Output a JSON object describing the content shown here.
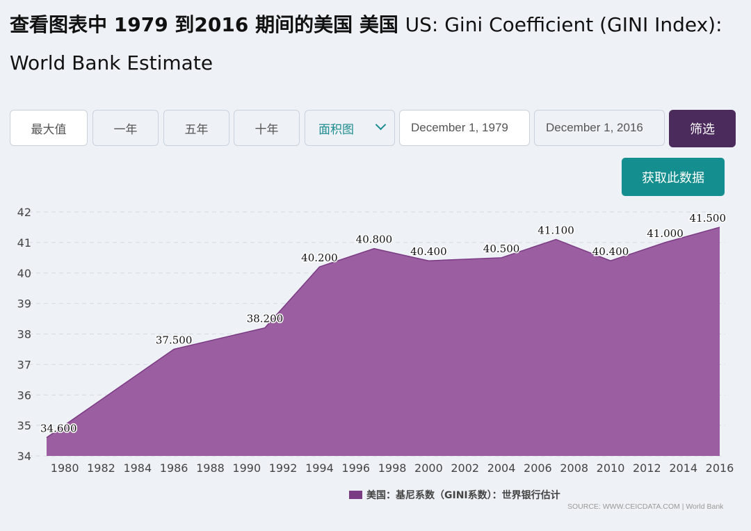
{
  "page": {
    "title_cn": "查看图表中 1979 到2016 期间的美国 美国",
    "title_en": "US: Gini Coefficient (GINI Index): World Bank Estimate"
  },
  "controls": {
    "range_buttons": [
      "最大值",
      "一年",
      "五年",
      "十年"
    ],
    "chart_type": "面积图",
    "start_date": "December 1, 1979",
    "end_date": "December 1, 2016",
    "filter_label": "筛选",
    "get_data_label": "获取此数据"
  },
  "legend_label": "美国：基尼系数（GINI系数）：世界银行估计",
  "source": "SOURCE: WWW.CEICDATA.COM | World Bank",
  "colors": {
    "area_fill": "#9b5ea0",
    "area_line": "#7b3a84",
    "filter_bg": "#4b2a5c",
    "get_data_bg": "#148e8e",
    "accent_text": "#1b8c90"
  },
  "chart_data": {
    "type": "area",
    "title": "",
    "xlabel": "",
    "ylabel": "",
    "ylim": [
      34,
      42
    ],
    "xlim": [
      1979,
      2016
    ],
    "yticks": [
      34,
      35,
      36,
      37,
      38,
      39,
      40,
      41,
      42
    ],
    "xticks": [
      1980,
      1982,
      1984,
      1986,
      1988,
      1990,
      1992,
      1994,
      1996,
      1998,
      2000,
      2002,
      2004,
      2006,
      2008,
      2010,
      2012,
      2014,
      2016
    ],
    "grid": true,
    "legend_position": "bottom",
    "series": [
      {
        "name": "美国：基尼系数（GINI系数）：世界银行估计",
        "x": [
          1979,
          1986,
          1991,
          1994,
          1997,
          2000,
          2004,
          2007,
          2010,
          2013,
          2016
        ],
        "values": [
          34.6,
          37.5,
          38.2,
          40.2,
          40.8,
          40.4,
          40.5,
          41.1,
          40.4,
          41.0,
          41.5
        ],
        "labels": [
          "34.600",
          "37.500",
          "38.200",
          "40.200",
          "40.800",
          "40.400",
          "40.500",
          "41.100",
          "40.400",
          "41.000",
          "41.500"
        ]
      }
    ]
  }
}
